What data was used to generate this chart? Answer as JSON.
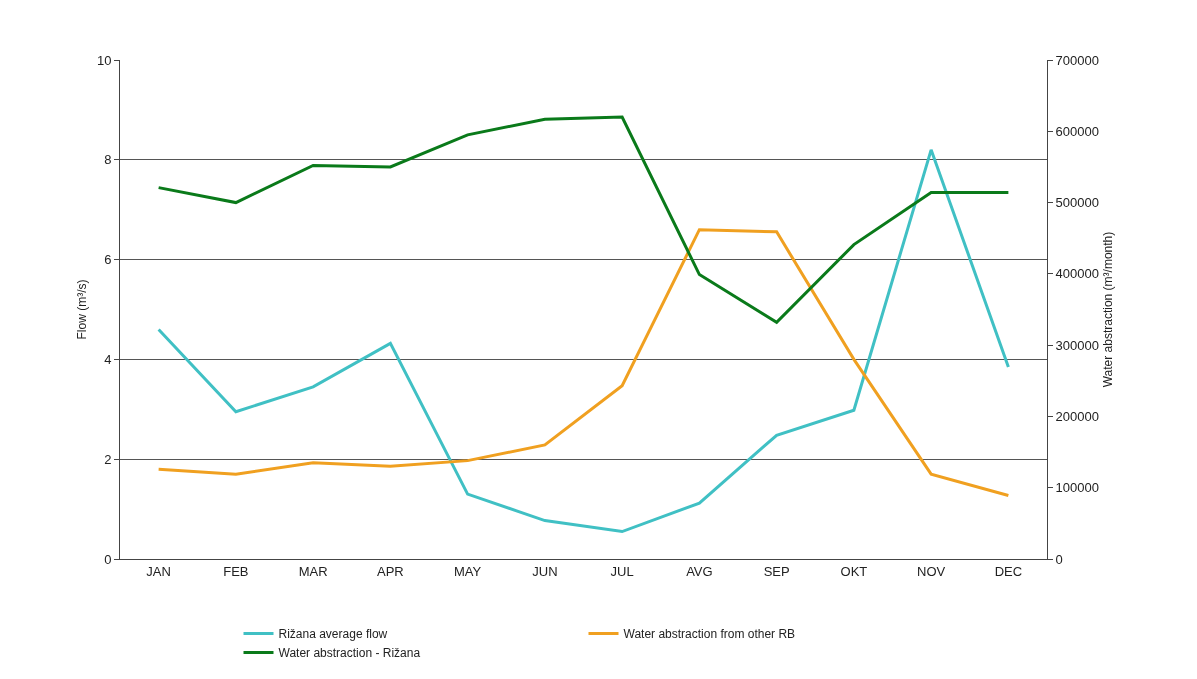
{
  "chart_data": {
    "type": "line",
    "ylabel": "Flow (m³/s)",
    "y2label": "Water abstraction (m³/month)",
    "categories": [
      "JAN",
      "FEB",
      "MAR",
      "APR",
      "MAY",
      "JUN",
      "JUL",
      "AVG",
      "SEP",
      "OKT",
      "NOV",
      "DEC"
    ],
    "series": [
      {
        "name": "Rižana average flow",
        "color": "#40c0c4",
        "values": [
          4.6,
          2.95,
          3.45,
          4.32,
          1.3,
          0.77,
          0.55,
          1.12,
          2.48,
          2.98,
          8.2,
          3.85
        ]
      },
      {
        "name": "Water abstraction from other RB",
        "color": "#f0a020",
        "axis": "y2",
        "values": [
          126000,
          119000,
          135000,
          130000,
          138000,
          160000,
          243000,
          462000,
          459000,
          280000,
          119000,
          89000
        ]
      },
      {
        "name": "Water abstraction - Rižana",
        "color": "#0a7a1a",
        "axis": "y2",
        "values": [
          521000,
          500000,
          552000,
          550000,
          595000,
          617000,
          620000,
          399000,
          332000,
          441000,
          514000,
          514000
        ]
      }
    ],
    "ylim": [
      0,
      10
    ],
    "yticks": [
      0,
      2,
      4,
      6,
      8,
      10
    ],
    "y2lim": [
      0,
      700000
    ],
    "y2ticks": [
      0,
      100000,
      200000,
      300000,
      400000,
      500000,
      600000,
      700000
    ],
    "grid": "y",
    "legend": "bottom",
    "marker": "none",
    "line_style": "solid"
  }
}
